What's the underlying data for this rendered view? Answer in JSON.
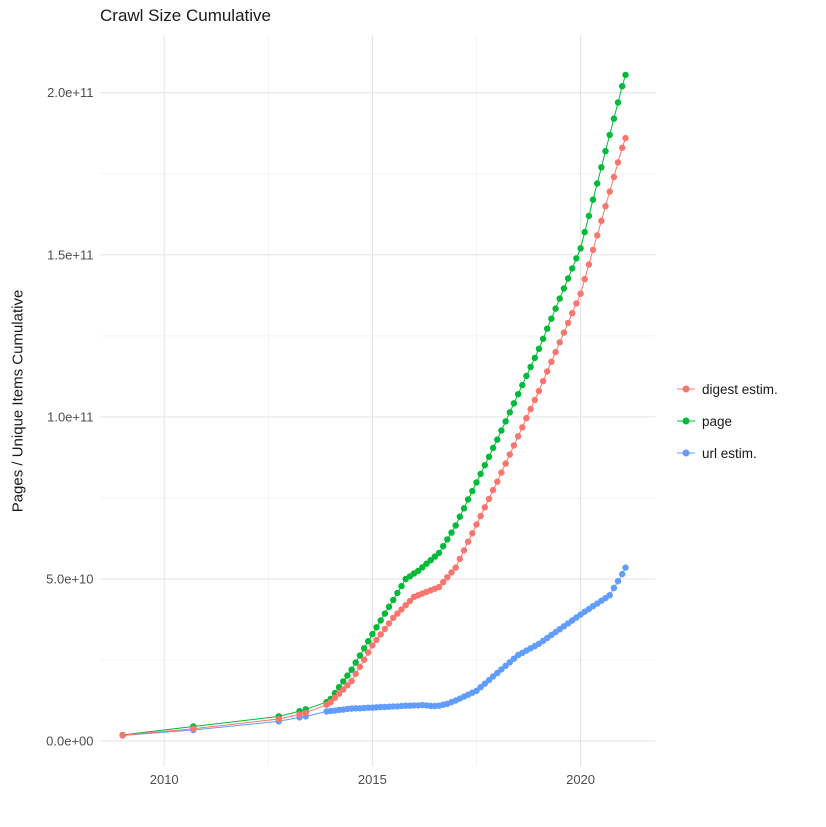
{
  "page": {
    "background": "#ffffff"
  },
  "chart_data": {
    "type": "scatter",
    "connect_points": true,
    "title": "Crawl Size Cumulative",
    "xlabel": "",
    "ylabel": "Pages / Unique Items Cumulative",
    "y_unit": "1e9 (values below are in billions of pages / items)",
    "x_unit": "year",
    "xlim": [
      2008.47,
      2021.8
    ],
    "ylim_e9": [
      -7.7,
      217.5
    ],
    "grid": {
      "major": "#e5e5e5",
      "minor": "#f0f0f0",
      "on": true
    },
    "legend_position": "right",
    "styles": {
      "axis_text": "#4d4d4d",
      "title_color": "#1a1a1a",
      "point_radius": 3.2,
      "line_width": 1
    },
    "x_ticks": [
      {
        "v": 2010,
        "label": "2010"
      },
      {
        "v": 2015,
        "label": "2015"
      },
      {
        "v": 2020,
        "label": "2020"
      }
    ],
    "x_minor": [
      2012.5,
      2017.5
    ],
    "y_ticks": [
      {
        "v": 0,
        "label": "0.0e+00"
      },
      {
        "v": 50,
        "label": "5.0e+10"
      },
      {
        "v": 100,
        "label": "1.0e+11"
      },
      {
        "v": 150,
        "label": "1.5e+11"
      },
      {
        "v": 200,
        "label": "2.0e+11"
      }
    ],
    "y_minor": [
      25,
      75,
      125,
      175
    ],
    "x": [
      2009.0,
      2010.7,
      2012.75,
      2013.25,
      2013.4,
      2013.9,
      2014.0,
      2014.1,
      2014.2,
      2014.3,
      2014.4,
      2014.5,
      2014.6,
      2014.7,
      2014.8,
      2014.9,
      2015.0,
      2015.1,
      2015.2,
      2015.3,
      2015.4,
      2015.5,
      2015.6,
      2015.7,
      2015.8,
      2015.9,
      2016.0,
      2016.1,
      2016.2,
      2016.3,
      2016.4,
      2016.5,
      2016.6,
      2016.7,
      2016.8,
      2016.9,
      2017.0,
      2017.1,
      2017.2,
      2017.3,
      2017.4,
      2017.5,
      2017.6,
      2017.7,
      2017.8,
      2017.9,
      2018.0,
      2018.1,
      2018.2,
      2018.3,
      2018.4,
      2018.5,
      2018.6,
      2018.7,
      2018.8,
      2018.9,
      2019.0,
      2019.1,
      2019.2,
      2019.3,
      2019.4,
      2019.5,
      2019.6,
      2019.7,
      2019.8,
      2019.9,
      2020.0,
      2020.1,
      2020.2,
      2020.3,
      2020.4,
      2020.5,
      2020.6,
      2020.7,
      2020.8,
      2020.9,
      2021.0,
      2021.08
    ],
    "series": [
      {
        "name": "digest estim.",
        "color": "#F8766D",
        "values": [
          1.8,
          3.8,
          6.8,
          8.2,
          8.7,
          11.2,
          12.0,
          13.3,
          14.6,
          15.9,
          17.2,
          18.5,
          20.7,
          22.9,
          25.1,
          27.3,
          29.5,
          31.2,
          32.9,
          34.6,
          36.3,
          38.0,
          39.3,
          40.6,
          41.9,
          43.2,
          44.5,
          45.0,
          45.5,
          46.0,
          46.5,
          47.0,
          47.5,
          49.0,
          50.5,
          52.0,
          53.5,
          56.2,
          58.8,
          61.5,
          64.1,
          66.8,
          69.4,
          72.1,
          74.7,
          77.4,
          80.0,
          82.8,
          85.6,
          88.4,
          91.2,
          94.0,
          96.8,
          99.6,
          102.4,
          105.2,
          108.0,
          111.0,
          114.0,
          117.0,
          120.0,
          123.0,
          126.0,
          129.0,
          132.0,
          135.0,
          138.0,
          142.5,
          147.0,
          151.5,
          156.0,
          160.5,
          165.0,
          169.5,
          174.0,
          178.5,
          183.0,
          186.0
        ]
      },
      {
        "name": "page",
        "color": "#00BA38",
        "values": [
          1.9,
          4.5,
          7.6,
          9.2,
          9.8,
          12.0,
          13.0,
          14.8,
          16.6,
          18.4,
          20.2,
          22.0,
          24.2,
          26.4,
          28.6,
          30.8,
          33.0,
          35.1,
          37.2,
          39.3,
          41.4,
          43.5,
          45.7,
          47.8,
          50.0,
          50.8,
          51.7,
          52.5,
          53.6,
          54.7,
          55.8,
          56.9,
          58.0,
          60.1,
          62.2,
          64.3,
          66.5,
          69.2,
          71.8,
          74.5,
          77.1,
          79.8,
          82.4,
          85.1,
          87.7,
          90.4,
          93.0,
          95.8,
          98.6,
          101.4,
          104.2,
          107.0,
          109.8,
          112.6,
          115.4,
          118.2,
          121.0,
          124.1,
          127.2,
          130.3,
          133.4,
          136.5,
          139.6,
          142.7,
          145.8,
          148.9,
          152.0,
          157.0,
          162.0,
          167.0,
          172.0,
          177.0,
          182.0,
          187.0,
          192.0,
          197.0,
          202.0,
          205.5
        ]
      },
      {
        "name": "url estim.",
        "color": "#619CFF",
        "values": [
          1.7,
          3.4,
          6.1,
          7.3,
          7.6,
          9.1,
          9.3,
          9.4,
          9.6,
          9.7,
          9.9,
          10.0,
          10.1,
          10.1,
          10.2,
          10.3,
          10.3,
          10.4,
          10.5,
          10.5,
          10.6,
          10.7,
          10.7,
          10.8,
          10.9,
          10.9,
          11.0,
          11.0,
          11.1,
          11.0,
          10.8,
          10.8,
          10.9,
          11.2,
          11.5,
          12.0,
          12.5,
          13.1,
          13.7,
          14.3,
          14.9,
          15.5,
          16.6,
          17.7,
          18.8,
          19.9,
          21.0,
          22.1,
          23.2,
          24.3,
          25.4,
          26.5,
          27.2,
          27.9,
          28.6,
          29.3,
          30.0,
          30.9,
          31.8,
          32.7,
          33.6,
          34.5,
          35.4,
          36.3,
          37.2,
          38.1,
          39.0,
          39.9,
          40.7,
          41.6,
          42.4,
          43.3,
          44.1,
          45.0,
          47.2,
          49.3,
          51.5,
          53.5
        ]
      }
    ]
  }
}
